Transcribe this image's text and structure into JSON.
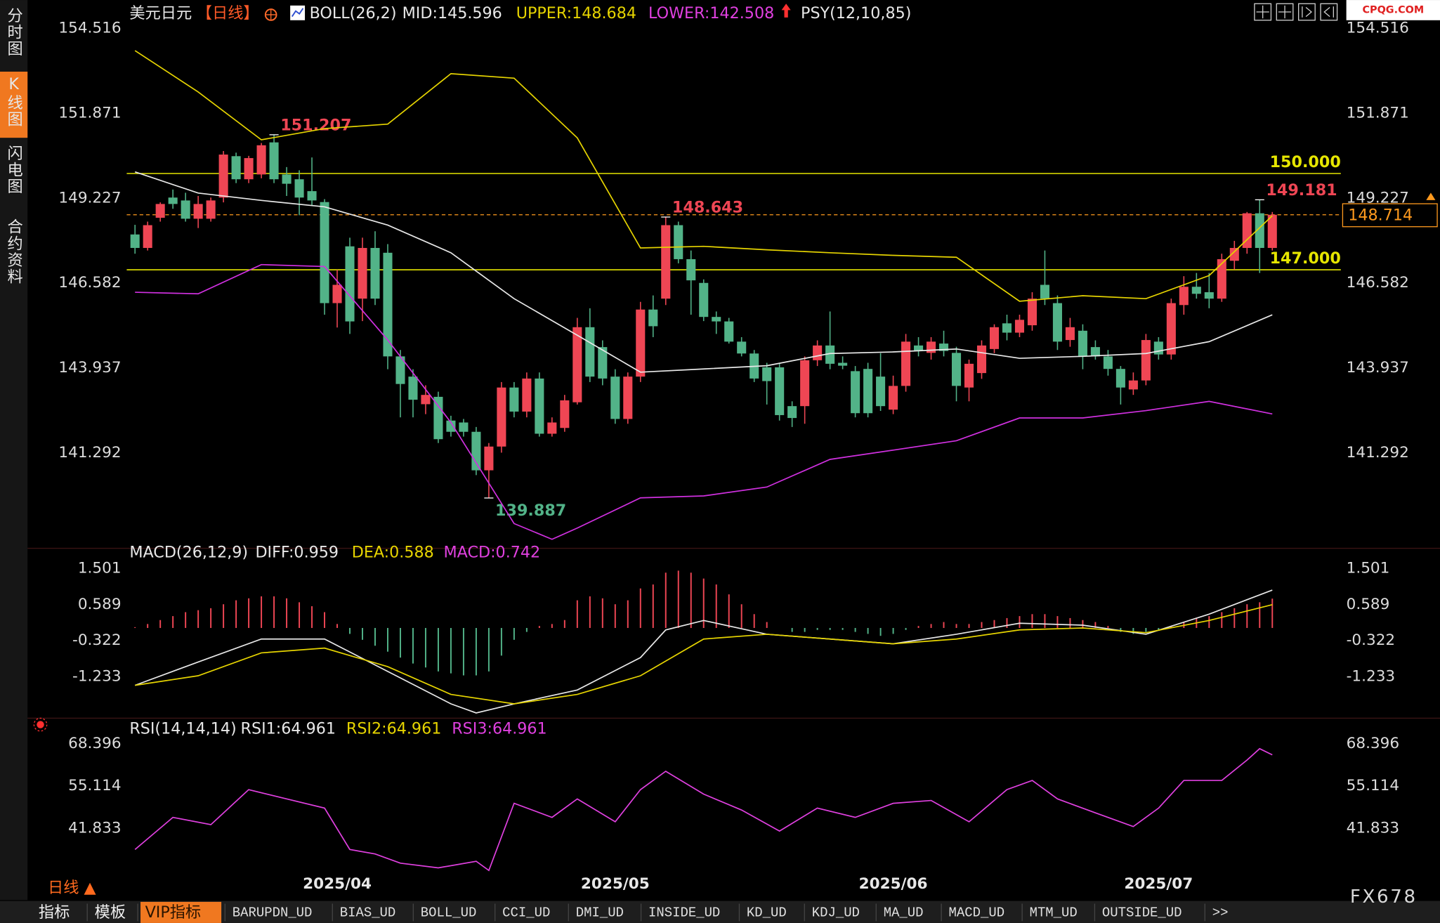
{
  "sidebar": [
    "分时图",
    "K线图",
    "闪电图",
    "合约资料"
  ],
  "chart_data": [
    {
      "type": "candlestick",
      "symbol": "美元日元",
      "period": "【日线】",
      "legend": [
        {
          "text": "BOLL(26,2)",
          "color": "#e8e8e8"
        },
        {
          "text": "MID:145.596",
          "color": "#e8e8e8"
        },
        {
          "text": "UPPER:148.684",
          "color": "#e6d400"
        },
        {
          "text": "LOWER:142.508",
          "color": "#e040e0"
        },
        {
          "text": "PSY(12,10,85)",
          "color": "#e8e8e8"
        }
      ],
      "open": [
        148.1,
        147.68,
        148.62,
        149.25,
        149.16,
        148.59,
        148.59,
        149.25,
        150.54,
        149.82,
        149.97,
        150.97,
        149.97,
        149.82,
        149.45,
        149.11,
        145.96,
        147.73,
        146.1,
        147.68,
        147.53,
        144.3,
        143.67,
        142.81,
        143.04,
        142.3,
        142.24,
        141.95,
        140.75,
        141.49,
        143.33,
        142.58,
        143.61,
        141.89,
        142.07,
        142.87,
        145.21,
        144.59,
        143.67,
        142.35,
        143.67,
        145.76,
        146.1,
        148.39,
        147.33,
        146.59,
        145.53,
        145.39,
        144.76,
        144.39,
        143.96,
        143.96,
        142.75,
        142.75,
        144.18,
        144.64,
        144.1,
        143.84,
        143.91,
        143.67,
        142.64,
        143.38,
        144.64,
        144.41,
        144.7,
        144.41,
        143.33,
        143.78,
        144.53,
        145.33,
        145.04,
        145.27,
        146.53,
        145.96,
        144.81,
        145.1,
        144.59,
        144.3,
        143.91,
        143.27,
        143.55,
        144.76,
        144.36,
        145.9,
        146.47,
        146.3,
        146.1,
        147.28,
        147.68,
        148.76,
        147.68
      ],
      "high": [
        148.4,
        148.5,
        149.1,
        149.5,
        149.4,
        149.3,
        149.25,
        150.7,
        150.65,
        150.55,
        150.95,
        151.207,
        150.2,
        150.1,
        150.5,
        149.2,
        147.0,
        148.0,
        148.0,
        148.2,
        147.8,
        144.5,
        143.9,
        143.4,
        143.2,
        142.45,
        142.35,
        142.1,
        141.6,
        143.5,
        143.5,
        143.8,
        143.8,
        142.4,
        143.1,
        145.5,
        145.8,
        144.8,
        143.9,
        143.8,
        146.0,
        146.2,
        148.643,
        148.5,
        147.6,
        146.7,
        145.7,
        145.5,
        144.9,
        144.5,
        144.1,
        144.1,
        142.9,
        144.3,
        144.8,
        145.7,
        144.3,
        144.0,
        144.1,
        144.4,
        143.7,
        145.0,
        144.9,
        144.9,
        145.1,
        144.6,
        144.2,
        144.8,
        145.3,
        145.6,
        145.6,
        146.3,
        147.6,
        146.2,
        145.5,
        145.3,
        144.8,
        144.5,
        144.0,
        143.8,
        145.0,
        144.9,
        146.1,
        146.8,
        146.9,
        146.9,
        147.5,
        147.9,
        148.8,
        149.181,
        148.8
      ],
      "low": [
        147.5,
        147.6,
        148.5,
        148.9,
        148.5,
        148.3,
        148.5,
        149.1,
        149.7,
        149.7,
        149.85,
        149.7,
        149.3,
        148.7,
        149.0,
        145.6,
        145.2,
        145.0,
        145.4,
        145.9,
        143.9,
        142.4,
        142.4,
        142.5,
        141.6,
        141.8,
        141.8,
        140.6,
        139.887,
        141.3,
        142.4,
        142.4,
        141.8,
        141.8,
        141.95,
        142.8,
        143.5,
        143.4,
        142.2,
        142.2,
        143.5,
        144.9,
        145.9,
        147.2,
        145.6,
        145.4,
        145.0,
        144.7,
        144.3,
        143.5,
        142.8,
        142.3,
        142.1,
        142.2,
        144.0,
        143.9,
        143.9,
        142.4,
        142.4,
        142.6,
        142.5,
        143.2,
        144.3,
        144.2,
        144.3,
        142.9,
        142.9,
        143.6,
        144.4,
        144.8,
        144.9,
        145.1,
        145.9,
        144.5,
        144.6,
        143.9,
        144.2,
        143.7,
        142.8,
        143.1,
        143.4,
        144.2,
        144.2,
        145.6,
        146.1,
        145.8,
        146.0,
        147.0,
        147.5,
        146.9,
        147.6
      ],
      "close": [
        147.68,
        148.39,
        149.05,
        149.05,
        148.59,
        149.05,
        149.16,
        150.59,
        149.82,
        150.48,
        150.88,
        149.82,
        149.68,
        149.25,
        149.16,
        145.96,
        146.53,
        145.39,
        147.68,
        146.1,
        144.3,
        143.44,
        142.95,
        143.1,
        141.72,
        141.95,
        141.95,
        140.75,
        141.49,
        143.33,
        142.58,
        143.61,
        141.89,
        142.24,
        142.93,
        145.21,
        143.67,
        143.61,
        142.35,
        143.67,
        145.76,
        145.24,
        148.39,
        147.33,
        146.67,
        145.53,
        145.39,
        144.76,
        144.39,
        143.61,
        143.53,
        142.47,
        142.38,
        144.18,
        144.64,
        144.07,
        144.01,
        142.53,
        142.53,
        142.75,
        143.38,
        144.76,
        144.47,
        144.76,
        144.47,
        143.38,
        144.07,
        144.64,
        145.21,
        145.04,
        145.44,
        146.1,
        146.1,
        144.76,
        145.21,
        144.3,
        144.3,
        143.91,
        143.33,
        143.55,
        144.81,
        144.36,
        145.96,
        146.47,
        146.25,
        146.1,
        147.33,
        147.68,
        148.76,
        147.68,
        148.714
      ],
      "up_color": "#ef4654",
      "down_color": "#52b388",
      "lines": [
        {
          "color": "#e6d400",
          "x": [
            0,
            5,
            10,
            15,
            20,
            25,
            30,
            35,
            40,
            45,
            50,
            55,
            60,
            65,
            70,
            75,
            80,
            85,
            90
          ],
          "values": [
            153.83,
            152.54,
            151.05,
            151.4,
            151.54,
            153.11,
            152.97,
            151.11,
            147.68,
            147.73,
            147.62,
            147.53,
            147.45,
            147.39,
            146.02,
            146.19,
            146.1,
            146.82,
            148.684
          ]
        },
        {
          "color": "#e8e8e8",
          "x": [
            0,
            5,
            10,
            15,
            20,
            25,
            30,
            35,
            40,
            45,
            50,
            55,
            60,
            65,
            70,
            75,
            80,
            85,
            90
          ],
          "values": [
            150.05,
            149.39,
            149.16,
            148.96,
            148.39,
            147.53,
            146.1,
            144.96,
            143.81,
            143.91,
            144.01,
            144.39,
            144.44,
            144.53,
            144.24,
            144.3,
            144.39,
            144.76,
            145.596
          ]
        },
        {
          "color": "#d030e0",
          "x": [
            0,
            5,
            10,
            15,
            20,
            25,
            30,
            33,
            35,
            40,
            45,
            50,
            55,
            60,
            65,
            70,
            75,
            80,
            85,
            90
          ],
          "values": [
            146.3,
            146.25,
            147.16,
            147.1,
            144.81,
            142.24,
            139.09,
            138.6,
            138.95,
            139.89,
            139.95,
            140.23,
            141.09,
            141.38,
            141.67,
            142.38,
            142.38,
            142.61,
            142.9,
            142.508
          ]
        }
      ],
      "ylim": [
        138.52,
        155.12
      ],
      "yticks": [
        154.516,
        151.871,
        149.227,
        146.582,
        143.937,
        141.292
      ],
      "hlines": [
        {
          "value": 150,
          "label": "150.000"
        },
        {
          "value": 147,
          "label": "147.000"
        }
      ],
      "hline_color": "#e6e600",
      "last_price": 148.714,
      "last_price_color": "#ff9a1e",
      "annotations": [
        {
          "x": 11,
          "value": 151.207
        },
        {
          "x": 42,
          "value": 148.643
        },
        {
          "x": 28,
          "value": 139.887
        },
        {
          "x": 89,
          "value": 149.181
        }
      ]
    },
    {
      "type": "macd",
      "legend": [
        {
          "text": "MACD(26,12,9)",
          "color": "#e8e8e8"
        },
        {
          "text": "DIFF:0.959",
          "color": "#e8e8e8"
        },
        {
          "text": "DEA:0.588",
          "color": "#e6d400"
        },
        {
          "text": "MACD:0.742",
          "color": "#e040e0"
        }
      ],
      "histogram": [
        0.02,
        0.1,
        0.2,
        0.3,
        0.4,
        0.45,
        0.5,
        0.6,
        0.7,
        0.75,
        0.8,
        0.8,
        0.75,
        0.65,
        0.55,
        0.4,
        0.1,
        -0.15,
        -0.3,
        -0.45,
        -0.6,
        -0.75,
        -0.9,
        -1.0,
        -1.1,
        -1.15,
        -1.2,
        -1.2,
        -1.1,
        -0.7,
        -0.3,
        -0.1,
        0.05,
        0.1,
        0.2,
        0.7,
        0.8,
        0.75,
        0.6,
        0.7,
        1.0,
        1.1,
        1.4,
        1.45,
        1.4,
        1.25,
        1.1,
        0.85,
        0.6,
        0.35,
        0.15,
        0.0,
        -0.1,
        -0.1,
        -0.05,
        -0.05,
        -0.05,
        -0.1,
        -0.15,
        -0.2,
        -0.15,
        -0.05,
        0.05,
        0.1,
        0.15,
        0.1,
        0.1,
        0.15,
        0.2,
        0.25,
        0.3,
        0.35,
        0.35,
        0.3,
        0.25,
        0.2,
        0.15,
        0.05,
        -0.1,
        -0.15,
        -0.1,
        -0.05,
        0.05,
        0.15,
        0.25,
        0.3,
        0.4,
        0.5,
        0.6,
        0.65,
        0.742
      ],
      "up_color": "#ef4654",
      "down_color": "#52b388",
      "lines": [
        {
          "color": "#e8e8e8",
          "x": [
            0,
            5,
            10,
            15,
            20,
            25,
            27,
            30,
            35,
            40,
            42,
            45,
            50,
            55,
            60,
            65,
            70,
            75,
            80,
            85,
            90
          ],
          "values": [
            -1.45,
            -0.86,
            -0.28,
            -0.28,
            -1.1,
            -1.92,
            -2.15,
            -1.92,
            -1.57,
            -0.75,
            -0.05,
            0.19,
            -0.16,
            -0.28,
            -0.4,
            -0.16,
            0.12,
            0.07,
            -0.16,
            0.35,
            0.959
          ]
        },
        {
          "color": "#e6d400",
          "x": [
            0,
            5,
            10,
            15,
            20,
            25,
            30,
            35,
            40,
            45,
            50,
            55,
            60,
            65,
            70,
            75,
            80,
            85,
            90
          ],
          "values": [
            -1.45,
            -1.21,
            -0.63,
            -0.51,
            -0.98,
            -1.68,
            -1.92,
            -1.68,
            -1.21,
            -0.28,
            -0.16,
            -0.28,
            -0.4,
            -0.28,
            -0.05,
            0.0,
            -0.12,
            0.19,
            0.588
          ]
        }
      ],
      "ylim": [
        -2.19,
        1.83
      ],
      "yticks": [
        1.501,
        0.589,
        -0.322,
        -1.233
      ]
    },
    {
      "type": "line",
      "legend": [
        {
          "text": "RSI(14,14,14)",
          "color": "#e8e8e8"
        },
        {
          "text": "RSI1:64.961",
          "color": "#e8e8e8"
        },
        {
          "text": "RSI2:64.961",
          "color": "#e6d400"
        },
        {
          "text": "RSI3:64.961",
          "color": "#e040e0"
        }
      ],
      "lines": [
        {
          "color": "#e040e0",
          "x": [
            0,
            3,
            6,
            9,
            12,
            15,
            17,
            19,
            21,
            24,
            27,
            28,
            30,
            33,
            35,
            38,
            40,
            42,
            45,
            48,
            51,
            54,
            57,
            60,
            63,
            66,
            69,
            71,
            73,
            76,
            79,
            81,
            83,
            86,
            88,
            89,
            90
          ],
          "values": [
            35.2,
            45.3,
            43.0,
            54.0,
            51.1,
            48.2,
            35.2,
            33.8,
            30.9,
            29.4,
            31.5,
            28.6,
            49.7,
            45.3,
            51.1,
            43.9,
            54.0,
            59.8,
            52.6,
            47.6,
            41.0,
            48.2,
            45.3,
            49.7,
            50.6,
            43.9,
            54.0,
            56.9,
            51.1,
            46.7,
            42.4,
            48.2,
            56.9,
            56.9,
            63.3,
            66.9,
            64.961
          ]
        }
      ],
      "ylim": [
        27.97,
        71.28
      ],
      "yticks": [
        68.396,
        55.114,
        41.833
      ],
      "xticks": [
        {
          "value": 16,
          "label": "2025/04"
        },
        {
          "value": 38,
          "label": "2025/05"
        },
        {
          "value": 60,
          "label": "2025/06"
        },
        {
          "value": 81,
          "label": "2025/07"
        }
      ]
    }
  ],
  "period_button": "日线 ▲",
  "brand": "FX678",
  "watermark": "CPQG.COM",
  "tabs": [
    "指标",
    "模板",
    "VIP指标",
    "BARUPDN_UD",
    "BIAS_UD",
    "BOLL_UD",
    "CCI_UD",
    "DMI_UD",
    "INSIDE_UD",
    "KD_UD",
    "KDJ_UD",
    "MA_UD",
    "MACD_UD",
    "MTM_UD",
    "OUTSIDE_UD",
    ">>"
  ]
}
